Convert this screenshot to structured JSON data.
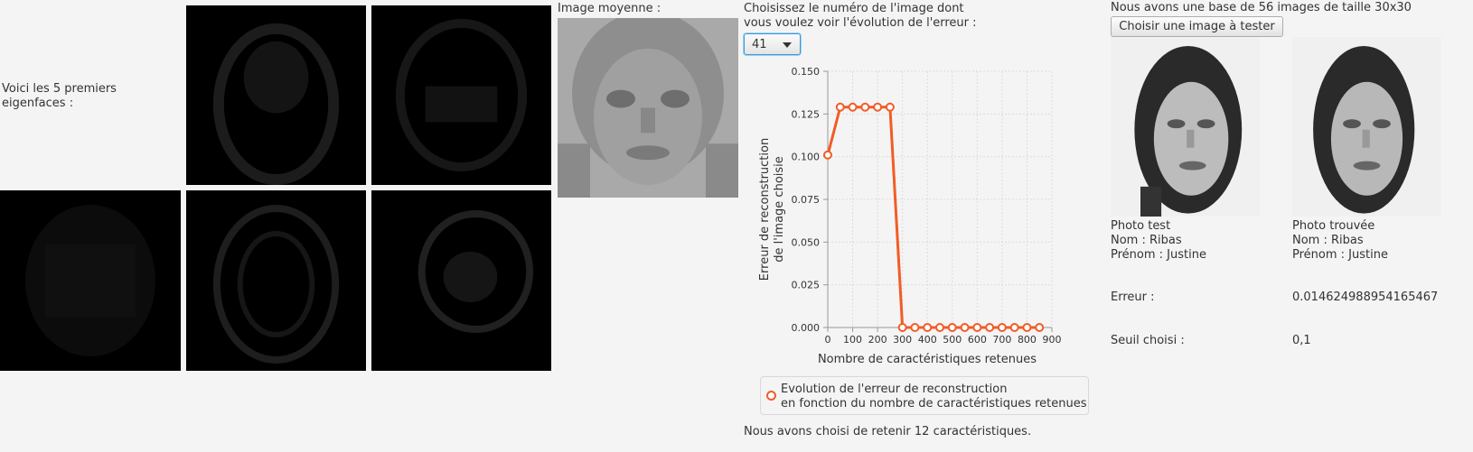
{
  "eigenfaces": {
    "label_line1": "Voici les 5 premiers",
    "label_line2": "eigenfaces :"
  },
  "mean_image": {
    "label": "Image moyenne :"
  },
  "selector": {
    "prompt_line1": "Choisissez le numéro de l'image dont",
    "prompt_line2": "vous voulez voir l'évolution de l'erreur :",
    "selected_value": "41"
  },
  "chart_data": {
    "type": "line",
    "xlabel": "Nombre de caractéristiques retenues",
    "ylabel_line1": "Erreur de reconstruction",
    "ylabel_line2": "de l'image choisie",
    "xlim": [
      0,
      900
    ],
    "ylim": [
      0,
      0.15
    ],
    "x_ticks": [
      "0",
      "100",
      "200",
      "300",
      "400",
      "500",
      "600",
      "700",
      "800",
      "900"
    ],
    "y_ticks": [
      "0.000",
      "0.025",
      "0.050",
      "0.075",
      "0.100",
      "0.125",
      "0.150"
    ],
    "grid": true,
    "series": [
      {
        "name_line1": "Evolution de l'erreur de reconstruction",
        "name_line2": "en fonction du nombre de caractéristiques retenues",
        "color": "#f25c26",
        "x": [
          0,
          50,
          100,
          150,
          200,
          250,
          300,
          350,
          400,
          450,
          500,
          550,
          600,
          650,
          700,
          750,
          800,
          850
        ],
        "y": [
          0.101,
          0.129,
          0.129,
          0.129,
          0.129,
          0.129,
          0,
          0,
          0,
          0,
          0,
          0,
          0,
          0,
          0,
          0,
          0,
          0
        ]
      }
    ]
  },
  "retained_text": "Nous avons choisi de retenir 12 caractéristiques.",
  "database": {
    "title": "Nous avons une base de 56 images de taille 30x30",
    "button_label": "Choisir une image à tester"
  },
  "test_photo": {
    "title": "Photo test",
    "nom": "Nom : Ribas",
    "prenom": "Prénom : Justine"
  },
  "found_photo": {
    "title": "Photo trouvée",
    "nom": "Nom : Ribas",
    "prenom": "Prénom : Justine"
  },
  "error": {
    "label": "Erreur :",
    "value": "0.014624988954165467"
  },
  "threshold": {
    "label": "Seuil choisi :",
    "value": "0,1"
  }
}
